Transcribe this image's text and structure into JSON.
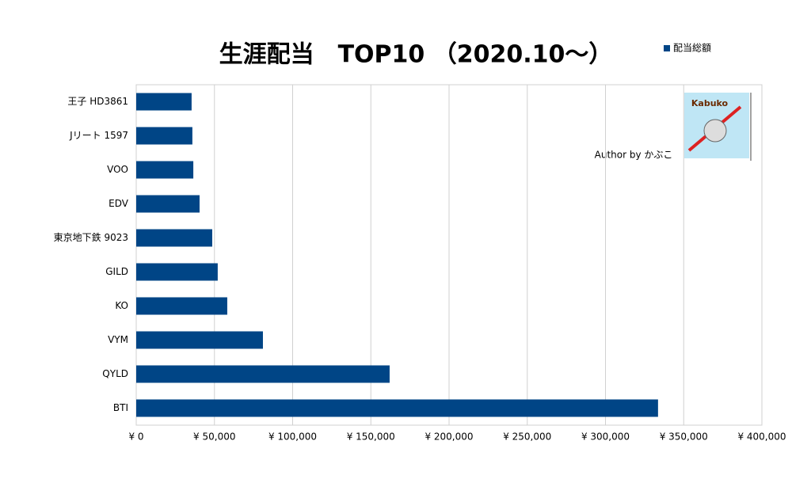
{
  "chart_data": {
    "type": "bar",
    "orientation": "horizontal",
    "title": "生涯配当　TOP10 （2020.10～）",
    "categories": [
      "王子 HD3861",
      "Jリート 1597",
      "VOO",
      "EDV",
      "東京地下鉄 9023",
      "GILD",
      "KO",
      "VYM",
      "QYLD",
      "BTI"
    ],
    "series": [
      {
        "name": "配当総額",
        "color": "#004586",
        "values": [
          35400,
          35900,
          36500,
          40500,
          48600,
          52100,
          58200,
          81000,
          162000,
          333600
        ]
      }
    ],
    "xlim": [
      0,
      400000
    ],
    "xticks": [
      {
        "value": 0,
        "label": "¥ 0"
      },
      {
        "value": 50000,
        "label": "¥ 50,000"
      },
      {
        "value": 100000,
        "label": "¥ 100,000"
      },
      {
        "value": 150000,
        "label": "¥ 150,000"
      },
      {
        "value": 200000,
        "label": "¥ 200,000"
      },
      {
        "value": 250000,
        "label": "¥ 250,000"
      },
      {
        "value": 300000,
        "label": "¥ 300,000"
      },
      {
        "value": 350000,
        "label": "¥ 350,000"
      },
      {
        "value": 400000,
        "label": "¥ 400,000"
      }
    ],
    "grid": true,
    "legend": "top-right",
    "annotations": [
      "Author by かぶこ",
      "Kabuko"
    ]
  }
}
